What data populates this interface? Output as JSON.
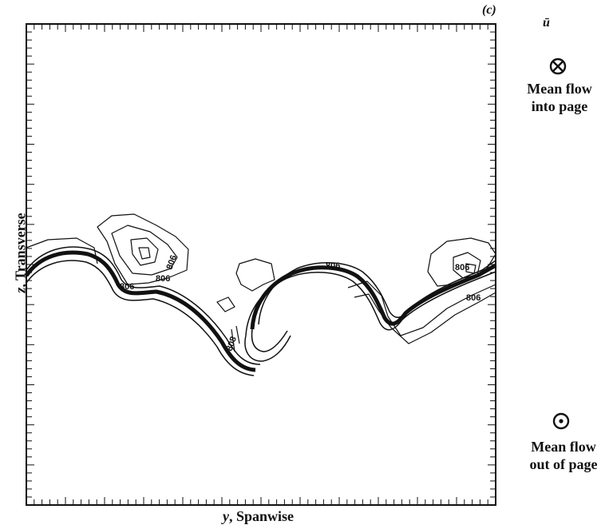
{
  "figure": {
    "panel_label": "(c)",
    "variable_label": "ū",
    "x_axis_label": {
      "var": "y",
      "text": ", Spanwise"
    },
    "y_axis_label": {
      "var": "z",
      "text": ", Transverse"
    },
    "legend": {
      "into_page": {
        "icon": "circle-cross-icon",
        "text_line1": "Mean flow",
        "text_line2": "into page"
      },
      "out_of_page": {
        "icon": "circle-dot-icon",
        "text_line1": "Mean flow",
        "text_line2": "out of page"
      }
    },
    "contour_labels": [
      "806",
      "806",
      "806",
      "806",
      "808",
      "806",
      "806"
    ],
    "line_color": "#111111",
    "background_color": "#ffffff"
  }
}
